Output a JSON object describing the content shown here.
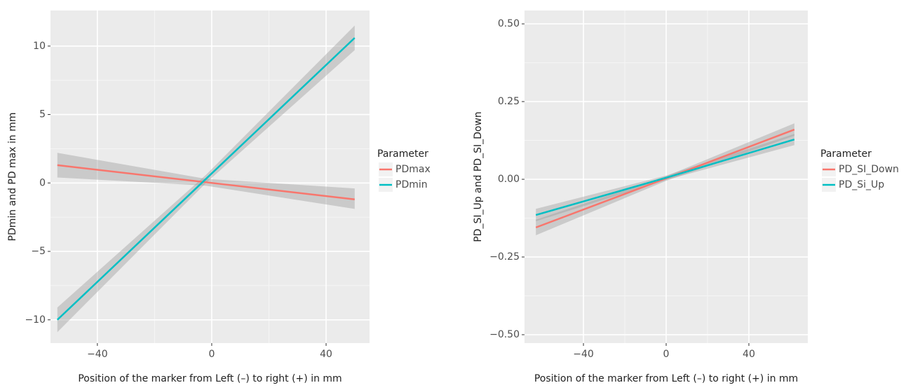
{
  "chart_data": [
    {
      "type": "line",
      "x_label": "Position of the marker from Left (–) to right (+) in mm",
      "y_label": "PDmin and PD max in mm",
      "legend_title": "Parameter",
      "xlim": [
        -56.4,
        55.2
      ],
      "ylim": [
        -11.7,
        12.6
      ],
      "xticks": [
        {
          "value": -40,
          "label": "−40"
        },
        0,
        40
      ],
      "yticks": [
        {
          "value": -10,
          "label": "−10"
        },
        {
          "value": -5,
          "label": "−5"
        },
        0,
        5,
        10
      ],
      "grid": true,
      "band_color": "#999999",
      "x": [
        -54,
        -2,
        50
      ],
      "series": [
        {
          "name": "PDmax",
          "color": "#f8766d",
          "values": [
            1.3,
            0.05,
            -1.2
          ],
          "lower": [
            0.4,
            -0.2,
            -1.9
          ],
          "upper": [
            2.2,
            0.3,
            -0.4
          ]
        },
        {
          "name": "PDmin",
          "color": "#00bfc4",
          "values": [
            -10,
            0.3,
            10.6
          ],
          "lower": [
            -10.9,
            0,
            9.7
          ],
          "upper": [
            -9.1,
            0.6,
            11.5
          ]
        }
      ]
    },
    {
      "type": "line",
      "x_label": "Position of the marker from Left (–) to right (+) in mm",
      "y_label": "PD_SI_Up and PD_SI_Down",
      "legend_title": "Parameter",
      "xlim": [
        -68.5,
        68.5
      ],
      "ylim": [
        -0.527,
        0.543
      ],
      "xticks": [
        {
          "value": -40,
          "label": "−40"
        },
        0,
        40
      ],
      "yticks": [
        {
          "value": -0.5,
          "label": "−0.50"
        },
        {
          "value": -0.25,
          "label": "−0.25"
        },
        {
          "value": 0,
          "label": "0.00"
        },
        0.25,
        {
          "value": 0.5,
          "label": "0.50"
        }
      ],
      "grid": true,
      "band_color": "#999999",
      "x": [
        -63,
        0,
        62
      ],
      "series": [
        {
          "name": "PD_SI_Down",
          "color": "#f8766d",
          "values": [
            -0.155,
            0.003,
            0.16
          ],
          "lower": [
            -0.18,
            -0.005,
            0.14
          ],
          "upper": [
            -0.13,
            0.01,
            0.18
          ]
        },
        {
          "name": "PD_Si_Up",
          "color": "#00bfc4",
          "values": [
            -0.115,
            0.005,
            0.128
          ],
          "lower": [
            -0.135,
            -0.002,
            0.11
          ],
          "upper": [
            -0.095,
            0.012,
            0.146
          ]
        }
      ]
    }
  ]
}
